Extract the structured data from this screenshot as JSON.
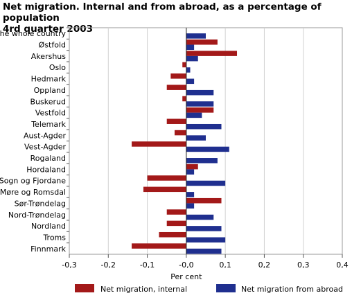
{
  "chart_data": {
    "type": "bar",
    "orientation": "horizontal",
    "title_line1": "Net migration. Internal and from abroad, as a percentage of population",
    "title_line2": "4rd quarter 2003",
    "xlabel": "Per cent",
    "xlim": [
      -0.3,
      0.4
    ],
    "xticks": [
      "-0,3",
      "-0,2",
      "-0,1",
      "-0,0",
      "0,1",
      "0,2",
      "0,3",
      "0,4"
    ],
    "grid": "vertical",
    "legend_position": "bottom",
    "categories": [
      "The whole country",
      "Østfold",
      "Akershus",
      "Oslo",
      "Hedmark",
      "Oppland",
      "Buskerud",
      "Vestfold",
      "Telemark",
      "Aust-Agder",
      "Vest-Agder",
      "Rogaland",
      "Hordaland",
      "Sogn og Fjordane",
      "Møre og Romsdal",
      "Sør-Trøndelag",
      "Nord-Trøndelag",
      "Nordland",
      "Troms",
      "Finnmark"
    ],
    "series": [
      {
        "name": "Net migration, internal",
        "color": "#a31919",
        "values": [
          0.0,
          0.08,
          0.13,
          -0.01,
          -0.04,
          -0.05,
          -0.01,
          0.07,
          -0.05,
          -0.03,
          -0.14,
          0.0,
          0.03,
          -0.1,
          -0.11,
          0.09,
          -0.05,
          -0.05,
          -0.07,
          -0.14
        ]
      },
      {
        "name": "Net migration from abroad",
        "color": "#1f2f8f",
        "values": [
          0.05,
          0.02,
          0.03,
          0.01,
          0.02,
          0.07,
          0.07,
          0.04,
          0.09,
          0.05,
          0.11,
          0.08,
          0.02,
          0.1,
          0.02,
          0.02,
          0.07,
          0.09,
          0.1,
          0.09
        ]
      }
    ]
  }
}
